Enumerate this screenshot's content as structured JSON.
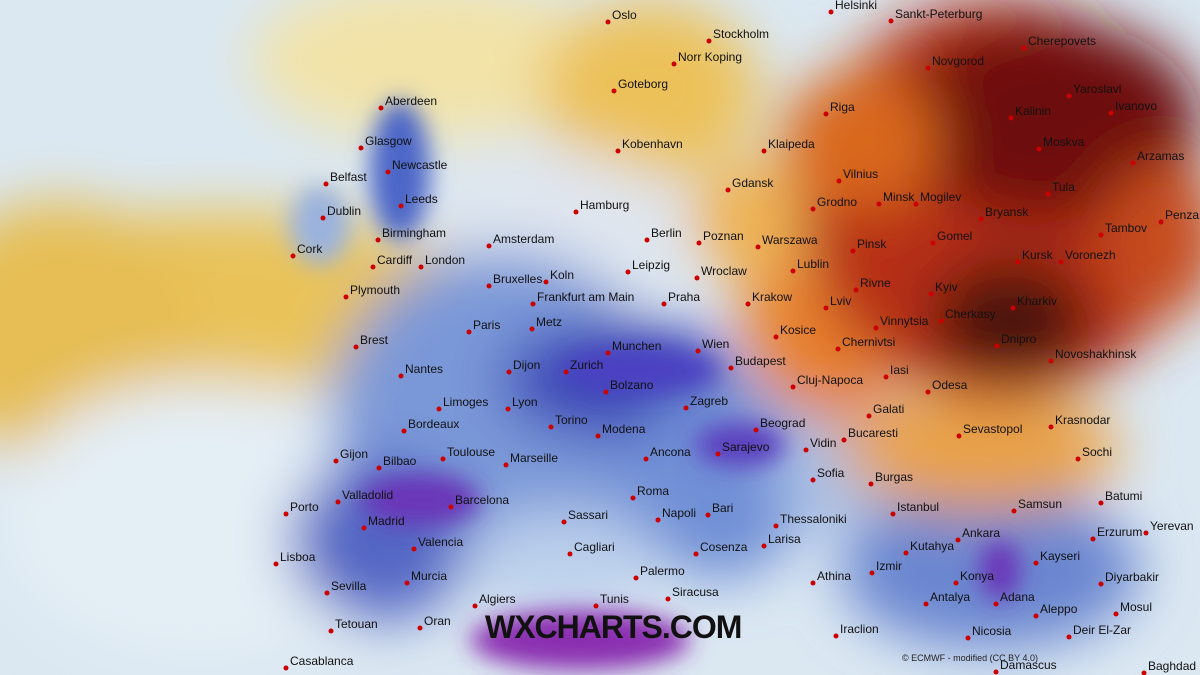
{
  "map": {
    "cities": [
      "Oslo",
      "Stockholm",
      "Norr Koping",
      "Goteborg",
      "Helsinki",
      "Sankt-Peterburg",
      "Cherepovets",
      "Novgorod",
      "Yaroslavl",
      "Ivanovo",
      "Aberdeen",
      "Riga",
      "Kalinin",
      "Klaipeda",
      "Moskva",
      "Glasgow",
      "Kobenhavn",
      "Newcastle",
      "Belfast",
      "Arzamas",
      "Vilnius",
      "Tula",
      "Dublin",
      "Leeds",
      "Gdansk",
      "Hamburg",
      "Minsk",
      "Mogilev",
      "Grodno",
      "Bryansk",
      "Penza",
      "Cork",
      "Birmingham",
      "Amsterdam",
      "Berlin",
      "Poznan",
      "Warszawa",
      "Gomel",
      "Tambov",
      "Pinsk",
      "Cardiff",
      "London",
      "Leipzig",
      "Wroclaw",
      "Lublin",
      "Kursk",
      "Voronezh",
      "Bruxelles",
      "Koln",
      "Rivne",
      "Kyiv",
      "Plymouth",
      "Frankfurt am Main",
      "Praha",
      "Krakow",
      "Lviv",
      "Kharkiv",
      "Paris",
      "Metz",
      "Kosice",
      "Vinnytsia",
      "Cherkasy",
      "Brest",
      "Dnipro",
      "Munchen",
      "Wien",
      "Chernivtsi",
      "Nantes",
      "Dijon",
      "Zurich",
      "Budapest",
      "Novoshakhinsk",
      "Iasi",
      "Cluj-Napoca",
      "Odesa",
      "Limoges",
      "Lyon",
      "Bolzano",
      "Zagreb",
      "Galati",
      "Bordeaux",
      "Torino",
      "Beograd",
      "Bucaresti",
      "Sevastopol",
      "Krasnodar",
      "Modena",
      "Sarajevo",
      "Vidin",
      "Gijon",
      "Toulouse",
      "Marseille",
      "Ancona",
      "Sofia",
      "Burgas",
      "Sochi",
      "Bilbao",
      "Valladolid",
      "Barcelona",
      "Roma",
      "Bari",
      "Istanbul",
      "Samsun",
      "Batumi",
      "Porto",
      "Madrid",
      "Sassari",
      "Napoli",
      "Thessaloniki",
      "Ankara",
      "Erzurum",
      "Yerevan",
      "Larisa",
      "Valencia",
      "Cagliari",
      "Cosenza",
      "Kutahya",
      "Kayseri",
      "Lisboa",
      "Murcia",
      "Izmir",
      "Konya",
      "Diyarbakir",
      "Palermo",
      "Athina",
      "Sevilla",
      "Algiers",
      "Tunis",
      "Siracusa",
      "Antalya",
      "Adana",
      "Aleppo",
      "Mosul",
      "Oran",
      "Iraclion",
      "Tetouan",
      "Nicosia",
      "Deir El-Zar",
      "Casablanca",
      "Damascus",
      "Baghdad"
    ],
    "watermark": "WXCHARTS.COM",
    "credit": "© ECMWF - modified (CC BY 4.0)"
  }
}
